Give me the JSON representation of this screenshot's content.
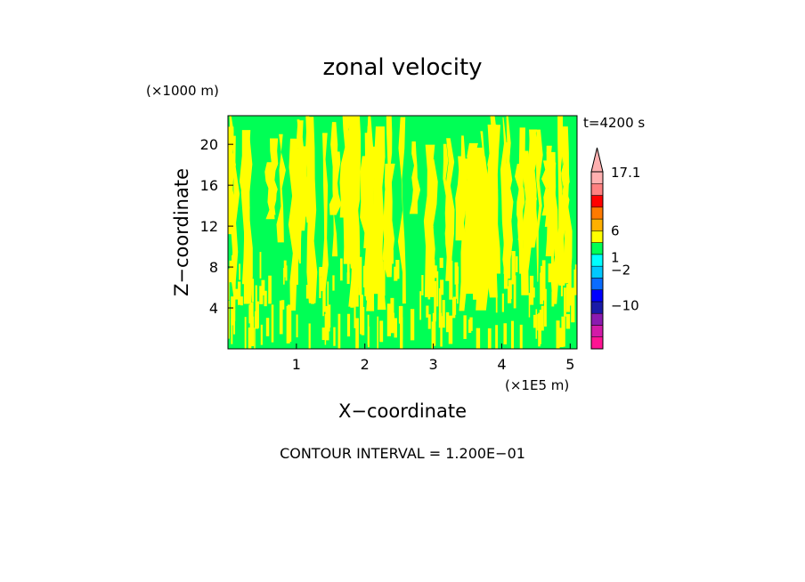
{
  "chart_data": {
    "type": "heatmap",
    "title": "zonal velocity",
    "time_label": "t=4200 s",
    "xlabel": "X−coordinate",
    "ylabel": "Z−coordinate",
    "x_unit": "(×1E5 m)",
    "y_unit": "(×1000 m)",
    "footer": "CONTOUR INTERVAL = 1.200E−01",
    "x_ticks": [
      {
        "value": 1,
        "label": "1"
      },
      {
        "value": 2,
        "label": "2"
      },
      {
        "value": 3,
        "label": "3"
      },
      {
        "value": 4,
        "label": "4"
      },
      {
        "value": 5,
        "label": "5"
      }
    ],
    "y_ticks": [
      {
        "value": 4,
        "label": "4"
      },
      {
        "value": 8,
        "label": "8"
      },
      {
        "value": 12,
        "label": "12"
      },
      {
        "value": 16,
        "label": "16"
      },
      {
        "value": 20,
        "label": "20"
      }
    ],
    "xlim": [
      0,
      5.1
    ],
    "ylim": [
      0,
      22.8
    ],
    "colors": {
      "low": "#00ff55",
      "high": "#ffff00"
    },
    "colorbar": {
      "segments": [
        "#ff1493",
        "#d21aa8",
        "#8b1ab0",
        "#1a1aa8",
        "#0000ff",
        "#0a6cff",
        "#00c8ff",
        "#00ffff",
        "#00ff55",
        "#ffff00",
        "#ffb000",
        "#ff7a00",
        "#ff0000",
        "#ff8080",
        "#ffb0b0"
      ],
      "labels": [
        {
          "text": "17.1",
          "level": 1.0
        },
        {
          "text": "6",
          "level": 0.67
        },
        {
          "text": "1",
          "level": 0.52
        },
        {
          "text": "−2",
          "level": 0.45
        },
        {
          "text": "−10",
          "level": 0.25
        }
      ]
    }
  }
}
